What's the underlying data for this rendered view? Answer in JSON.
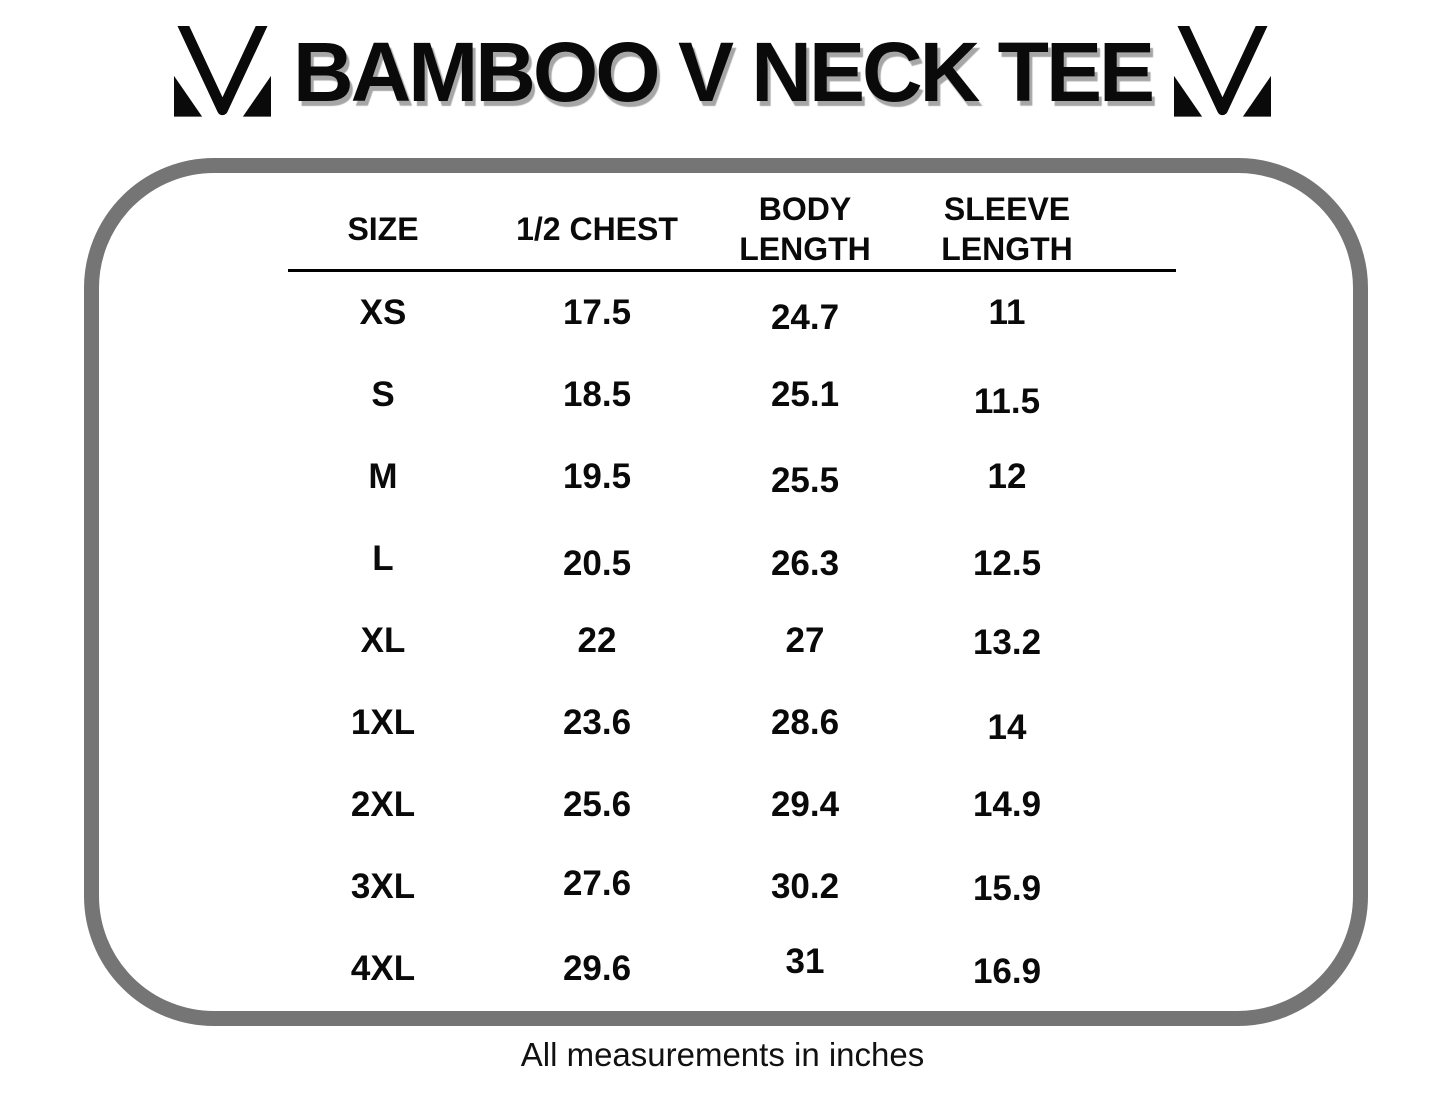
{
  "header": {
    "title": "BAMBOO V NECK TEE",
    "left_logo_icon": "m-monogram-logo",
    "right_logo_icon": "m-monogram-logo"
  },
  "chart_data": {
    "type": "table",
    "title": "BAMBOO V NECK TEE",
    "columns": [
      "SIZE",
      "1/2 CHEST",
      "BODY LENGTH",
      "SLEEVE LENGTH"
    ],
    "rows": [
      [
        "XS",
        "17.5",
        "24.7",
        "11"
      ],
      [
        "S",
        "18.5",
        "25.1",
        "11.5"
      ],
      [
        "M",
        "19.5",
        "25.5",
        "12"
      ],
      [
        "L",
        "20.5",
        "26.3",
        "12.5"
      ],
      [
        "XL",
        "22",
        "27",
        "13.2"
      ],
      [
        "1XL",
        "23.6",
        "28.6",
        "14"
      ],
      [
        "2XL",
        "25.6",
        "29.4",
        "14.9"
      ],
      [
        "3XL",
        "27.6",
        "30.2",
        "15.9"
      ],
      [
        "4XL",
        "29.6",
        "31",
        "16.9"
      ]
    ],
    "units": "inches"
  },
  "footer": {
    "note": "All measurements in inches"
  },
  "colors": {
    "text_black": "#0a0a0a",
    "panel_border_gray": "#757575",
    "title_shadow_gray": "#a6a6a6",
    "background": "#ffffff"
  }
}
